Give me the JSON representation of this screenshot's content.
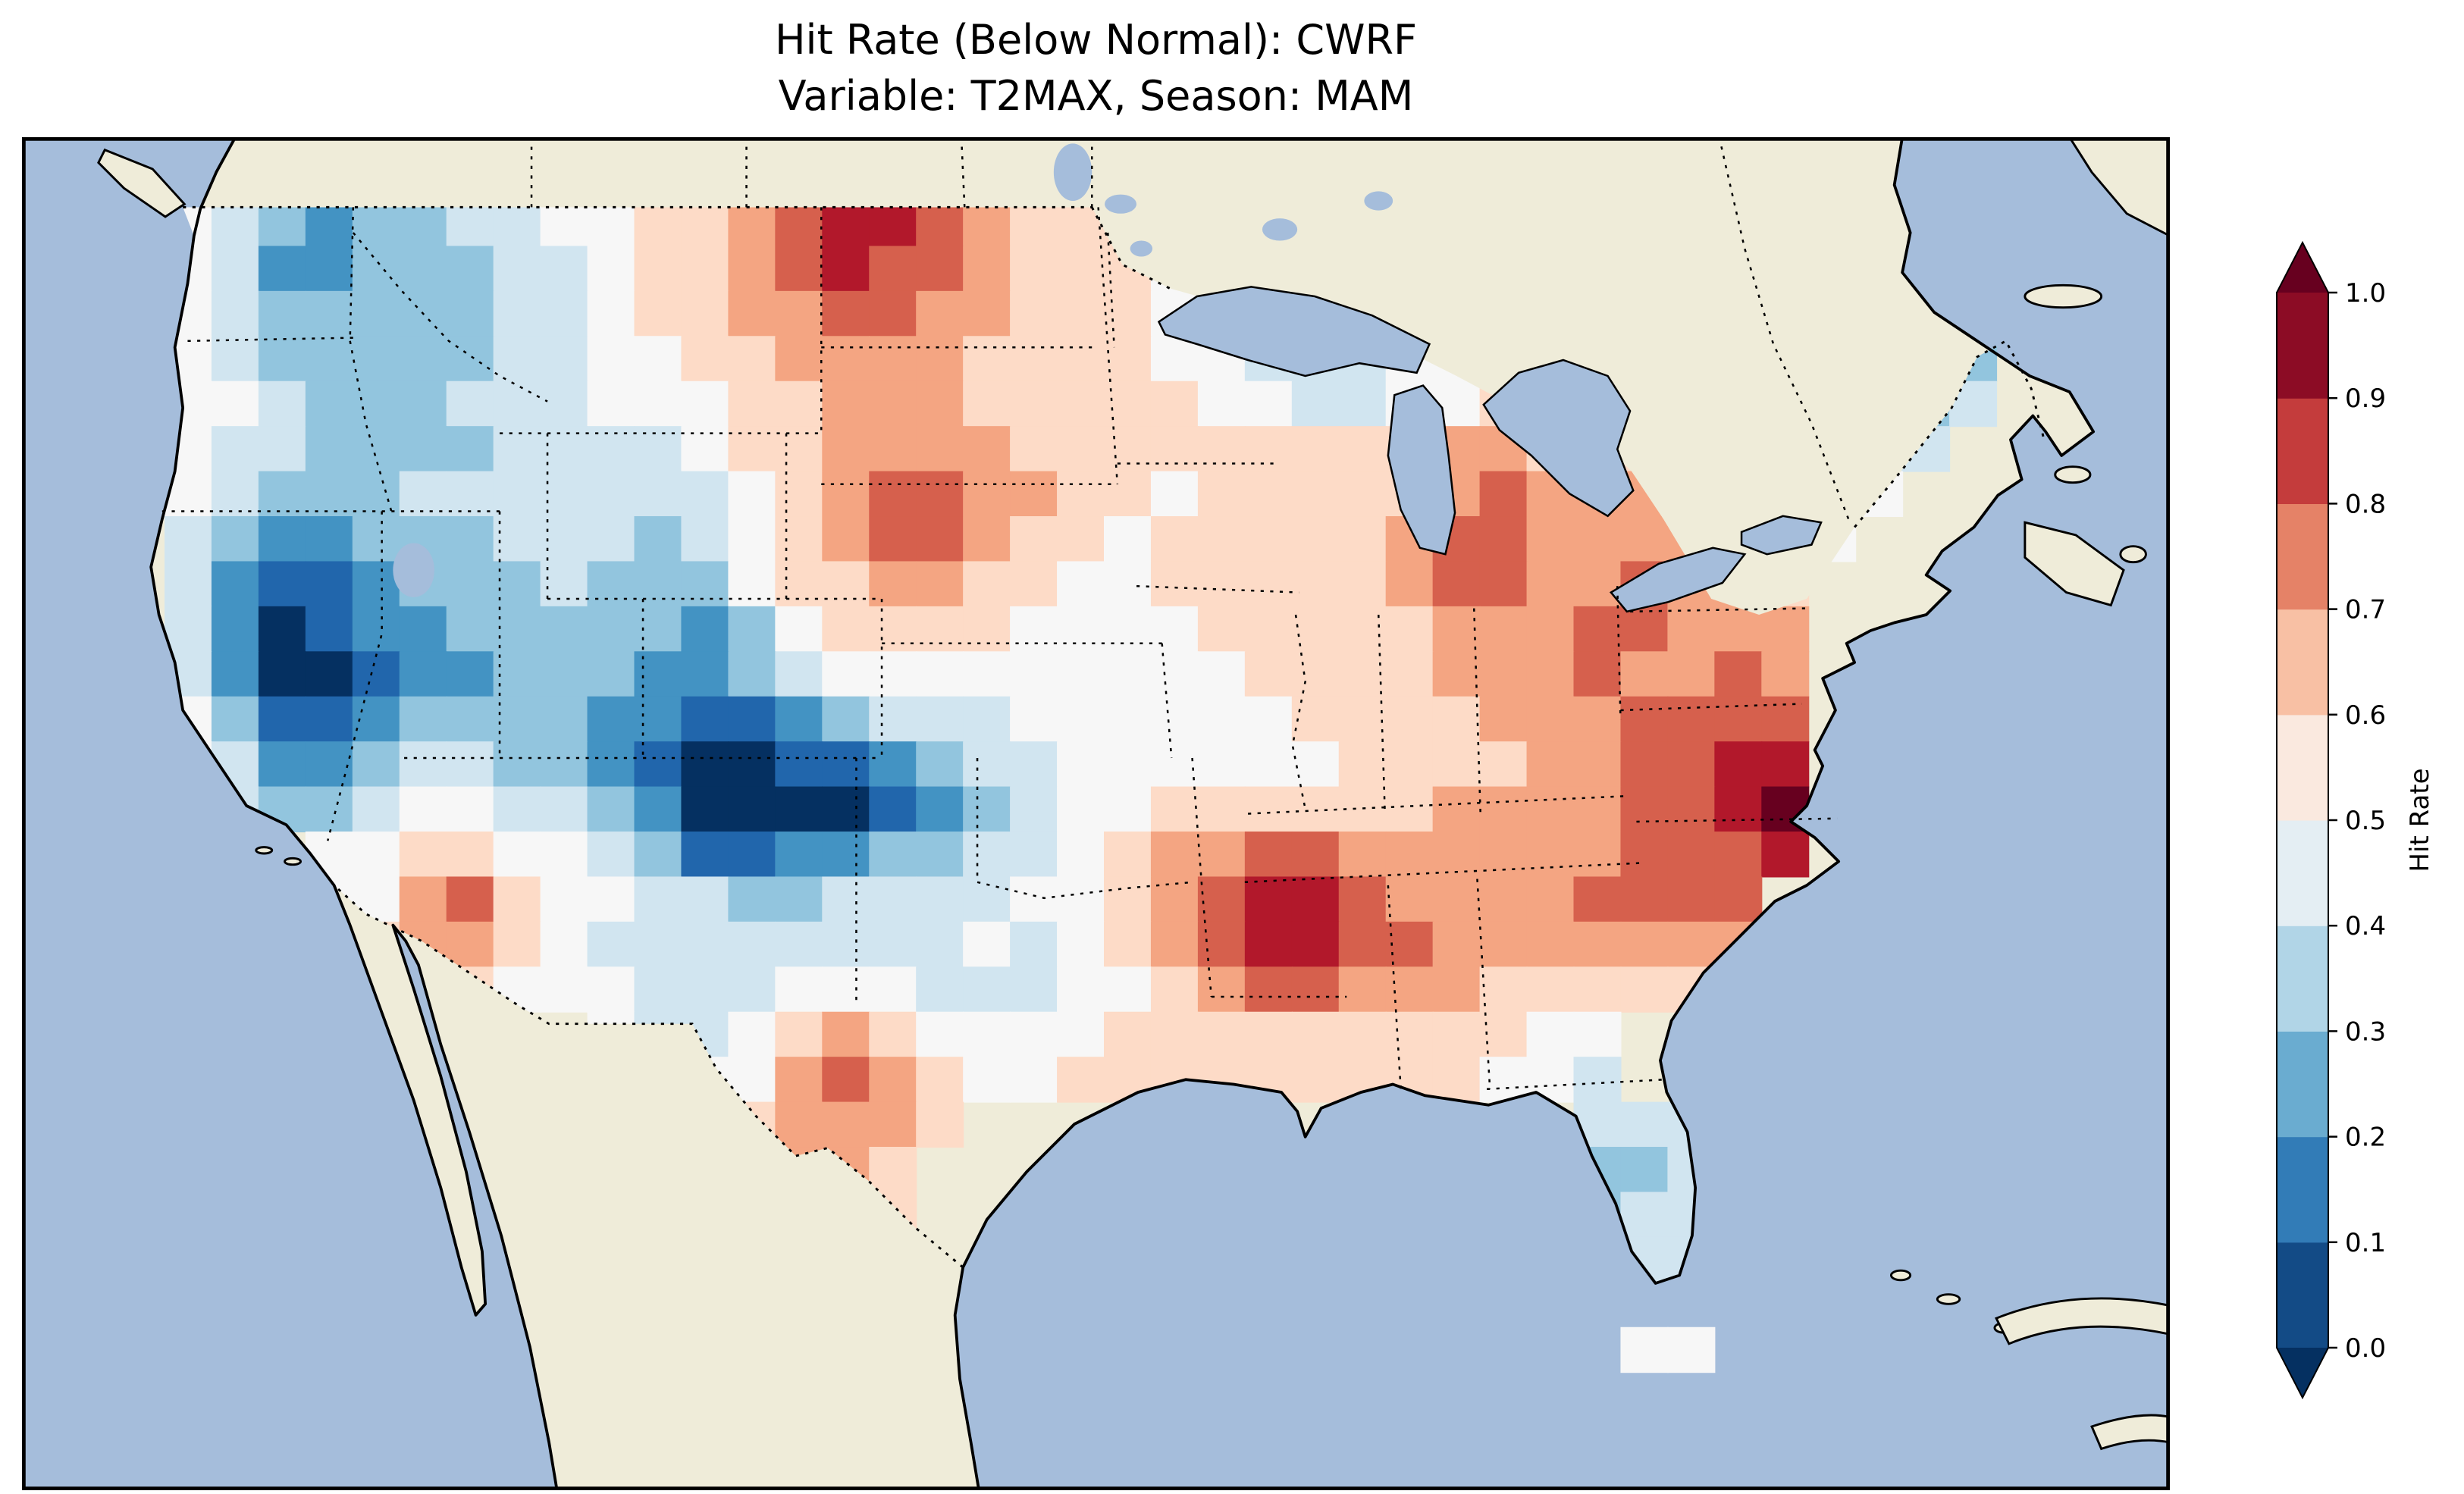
{
  "title": {
    "line1": "Hit Rate (Below Normal): CWRF",
    "line2": "Variable: T2MAX, Season: MAM"
  },
  "colorbar": {
    "label": "Hit Rate",
    "ticks": [
      "0.0",
      "0.1",
      "0.2",
      "0.3",
      "0.4",
      "0.5",
      "0.6",
      "0.7",
      "0.8",
      "0.9",
      "1.0"
    ],
    "segment_colors_bottom_to_top": [
      "#134b86",
      "#327cb7",
      "#6aacd0",
      "#b1d5e7",
      "#e4eef3",
      "#fae9df",
      "#f8c0a4",
      "#e58267",
      "#c43c3c",
      "#8c0c25"
    ],
    "extend_below_color": "#053061",
    "extend_above_color": "#67001f"
  },
  "map": {
    "ocean_color": "#a5bddb",
    "land_color": "#efecd9",
    "coastline_color": "#000000",
    "border_style": "dotted"
  },
  "chart_data": {
    "type": "heatmap",
    "title": "Hit Rate (Below Normal): CWRF",
    "subtitle": "Variable: T2MAX, Season: MAM",
    "region": "Contiguous United States",
    "colorbar_label": "Hit Rate",
    "value_range": [
      0.0,
      1.0
    ],
    "colormap": "RdBu_r",
    "colormap_stops": {
      "0.0": "#053061",
      "0.1": "#2166ac",
      "0.2": "#4393c3",
      "0.3": "#92c5de",
      "0.4": "#d1e5f0",
      "0.5": "#f7f7f7",
      "0.6": "#fddbc7",
      "0.7": "#f4a582",
      "0.8": "#d6604d",
      "0.9": "#b2182b",
      "1.0": "#67001f"
    },
    "grid_encoding": "Each character is a hit-rate value: 0-9 = 0.0-0.9, a = 1.0, '.' = outside data domain. Rows run north to south, columns west to east.",
    "grid_rows": [
      ".5432334455667899876666.................",
      ".542233344566789887666544...............",
      ".5433333445667788776665433444........323",
      ".54333334455667777666655444555......4323",
      ".554333444555667776666655445566665543234",
      ".54433334444566777766666666677666655444.",
      ".5433344444445678877665666667877766555..",
      ".432233344434567887665666667887777665...",
      ".42112333433356677665566666788778776....",
      ".42012233333235666655556666677788777....",
      ".42001223332234555555555666677787787....",
      ".53112333322112344455555566667778888....",
      ".54223443321001123445555556666778899....",
      ".5433455443200001234556666667777889a....",
      "....55665543112233445677887777778889....",
      "....5578655443344445567899877778888.....",
      ".....677654444444454567899887777777.....",
      "......6655544455544455678877766666......",
      "..........5445676555566666666655........",
      "............55787655666666666554........",
      ".............67776.............444......",
      ".............6776..............334......",
      "..............676..............344......",
      "..............78................44......",
      "...............7................4.......",
      "................................55......"
    ],
    "notable_features": [
      {
        "area": "northwest Nevada / eastern Sierra",
        "hit_rate": "0.0-0.1"
      },
      {
        "area": "eastern Colorado / western Kansas",
        "hit_rate": "0.0-0.1"
      },
      {
        "area": "north-central Montana at Canadian border",
        "hit_rate": "0.8-0.9"
      },
      {
        "area": "South Dakota",
        "hit_rate": "0.7-0.8"
      },
      {
        "area": "central Texas",
        "hit_rate": "0.7-0.8"
      },
      {
        "area": "western Tennessee / northern Mississippi",
        "hit_rate": "0.8-0.9"
      },
      {
        "area": "Appalachians and Carolinas",
        "hit_rate": "0.7-0.9"
      },
      {
        "area": "North Carolina coast",
        "hit_rate": "0.9-1.0"
      },
      {
        "area": "Florida peninsula",
        "hit_rate": "0.3-0.4"
      },
      {
        "area": "northern Maine",
        "hit_rate": "0.2-0.3"
      }
    ]
  }
}
